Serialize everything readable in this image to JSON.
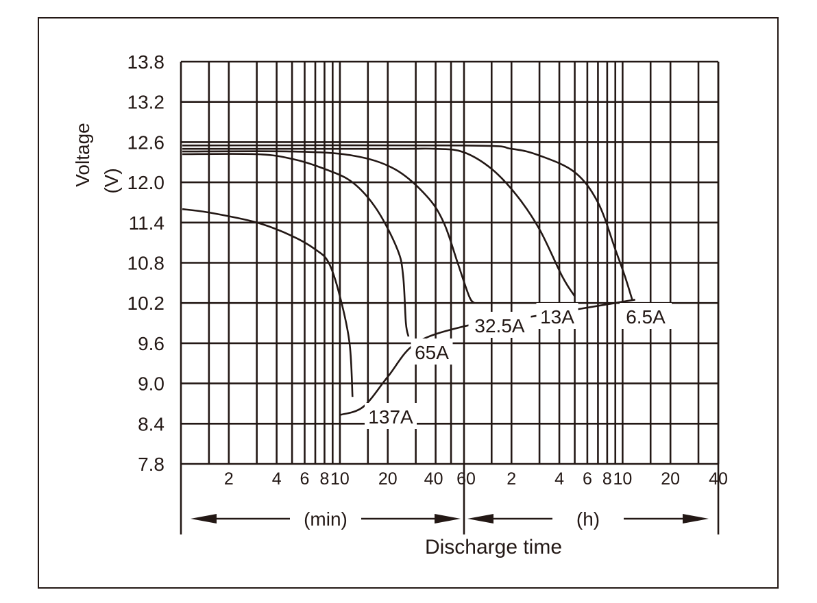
{
  "chart_data": {
    "type": "line",
    "title": "",
    "xlabel": "Discharge time",
    "ylabel": "Voltage",
    "ylabel_unit": "(V)",
    "x_scale": "log",
    "x_segments": [
      {
        "unit_label": "(min)",
        "tick_labels": [
          "2",
          "4",
          "6",
          "8",
          "10",
          "20",
          "40",
          "60"
        ],
        "tick_values": [
          2,
          4,
          6,
          8,
          10,
          20,
          40,
          60
        ]
      },
      {
        "unit_label": "(h)",
        "tick_labels": [
          "2",
          "4",
          "6",
          "8",
          "10",
          "20",
          "40"
        ],
        "tick_values": [
          2,
          4,
          6,
          8,
          10,
          20,
          40
        ]
      }
    ],
    "y_ticks": [
      "13.8",
      "13.2",
      "12.6",
      "12.0",
      "11.4",
      "10.8",
      "10.2",
      "9.6",
      "9.0",
      "8.4",
      "7.8"
    ],
    "ylim": [
      7.8,
      13.8
    ],
    "grid": true,
    "series": [
      {
        "name": "137A",
        "points": [
          [
            1,
            11.6
          ],
          [
            1.5,
            11.55
          ],
          [
            3,
            11.4
          ],
          [
            5,
            11.2
          ],
          [
            7,
            11.0
          ],
          [
            8.5,
            10.8
          ],
          [
            10,
            10.3
          ],
          [
            11.5,
            9.6
          ],
          [
            12,
            8.8
          ]
        ]
      },
      {
        "name": "65A",
        "points": [
          [
            1,
            12.42
          ],
          [
            3,
            12.42
          ],
          [
            5,
            12.35
          ],
          [
            8,
            12.2
          ],
          [
            12,
            12.0
          ],
          [
            17,
            11.6
          ],
          [
            23,
            11.0
          ],
          [
            25,
            10.6
          ],
          [
            26,
            9.9
          ],
          [
            27,
            9.7
          ]
        ]
      },
      {
        "name": "32.5A",
        "points": [
          [
            1,
            12.46
          ],
          [
            5,
            12.46
          ],
          [
            12,
            12.4
          ],
          [
            22,
            12.2
          ],
          [
            35,
            11.8
          ],
          [
            45,
            11.4
          ],
          [
            55,
            10.8
          ],
          [
            65,
            10.3
          ],
          [
            70,
            10.2
          ]
        ]
      },
      {
        "name": "13A",
        "points": [
          [
            1,
            12.5
          ],
          [
            20,
            12.5
          ],
          [
            40,
            12.5
          ],
          [
            60,
            12.45
          ],
          [
            90,
            12.2
          ],
          [
            130,
            11.8
          ],
          [
            180,
            11.3
          ],
          [
            250,
            10.6
          ],
          [
            300,
            10.3
          ]
        ]
      },
      {
        "name": "6.5A",
        "points": [
          [
            1,
            12.55
          ],
          [
            60,
            12.55
          ],
          [
            120,
            12.5
          ],
          [
            180,
            12.4
          ],
          [
            300,
            12.15
          ],
          [
            420,
            11.7
          ],
          [
            540,
            11.0
          ],
          [
            620,
            10.6
          ],
          [
            690,
            10.25
          ]
        ]
      }
    ],
    "end_voltage_line": {
      "points": [
        [
          10,
          8.53
        ],
        [
          14,
          8.65
        ],
        [
          20,
          9.1
        ],
        [
          30,
          9.6
        ],
        [
          60,
          9.85
        ],
        [
          120,
          9.95
        ],
        [
          300,
          10.1
        ],
        [
          720,
          10.25
        ]
      ]
    },
    "annotations": [
      "137A",
      "65A",
      "32.5A",
      "13A",
      "6.5A"
    ]
  }
}
